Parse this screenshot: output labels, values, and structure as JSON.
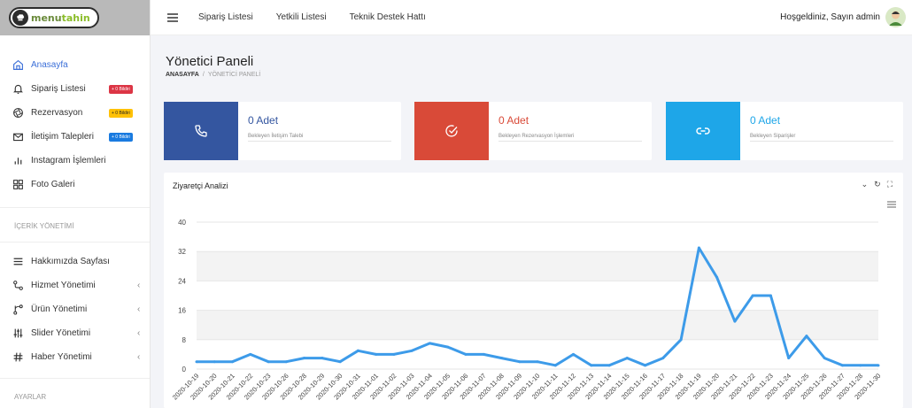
{
  "logo": {
    "text_a": "menu",
    "text_b": "tahin"
  },
  "topbar": {
    "links": [
      "Sipariş Listesi",
      "Yetkili Listesi",
      "Teknik Destek Hattı"
    ],
    "welcome": "Hoşgeldiniz, Sayın admin"
  },
  "sidebar": {
    "items": [
      {
        "label": "Anasayfa",
        "icon": "home-icon",
        "active": true
      },
      {
        "label": "Sipariş Listesi",
        "icon": "bell-icon",
        "badge": "+ 0 Bildiri",
        "badge_color": "#dc3545"
      },
      {
        "label": "Rezervasyon",
        "icon": "aperture-icon",
        "badge": "+ 0 Bildiri",
        "badge_color": "#ffc107"
      },
      {
        "label": "İletişim Talepleri",
        "icon": "mail-icon",
        "badge": "+ 0 Bildiri",
        "badge_color": "#1a7be0"
      },
      {
        "label": "Instagram İşlemleri",
        "icon": "bar-chart-icon"
      },
      {
        "label": "Foto Galeri",
        "icon": "grid-icon"
      }
    ],
    "section_content": "İÇERİK YÖNETİMİ",
    "content_items": [
      {
        "label": "Hakkımızda Sayfası",
        "icon": "menu-lines-icon",
        "chevron": false
      },
      {
        "label": "Hizmet Yönetimi",
        "icon": "route-icon",
        "chevron": true
      },
      {
        "label": "Ürün Yönetimi",
        "icon": "git-merge-icon",
        "chevron": true
      },
      {
        "label": "Slider Yönetimi",
        "icon": "sliders-icon",
        "chevron": true
      },
      {
        "label": "Haber Yönetimi",
        "icon": "hash-icon",
        "chevron": true
      }
    ],
    "section_settings": "AYARLAR"
  },
  "page": {
    "title": "Yönetici Paneli",
    "breadcrumb_root": "ANASAYFA",
    "breadcrumb_sep": "/",
    "breadcrumb_current": "YÖNETİCİ PANELİ"
  },
  "cards": [
    {
      "value": "0 Adet",
      "label": "Bekleyen İletişim Talebi",
      "color": "#3456a0",
      "icon": "phone-icon"
    },
    {
      "value": "0 Adet",
      "label": "Bekleyen Rezervasyon İşlemleri",
      "color": "#d94a38",
      "icon": "check-circle-icon"
    },
    {
      "value": "0 Adet",
      "label": "Bekleyen Siparişler",
      "color": "#1ea6e8",
      "icon": "link-icon"
    }
  ],
  "chart": {
    "title": "Ziyaretçi Analizi",
    "line_color": "#3d9be9"
  },
  "chart_data": {
    "type": "line",
    "x": [
      "2020-10-19",
      "2020-10-20",
      "2020-10-21",
      "2020-10-22",
      "2020-10-23",
      "2020-10-26",
      "2020-10-28",
      "2020-10-29",
      "2020-10-30",
      "2020-10-31",
      "2020-11-01",
      "2020-11-02",
      "2020-11-03",
      "2020-11-04",
      "2020-11-05",
      "2020-11-06",
      "2020-11-07",
      "2020-11-08",
      "2020-11-09",
      "2020-11-10",
      "2020-11-11",
      "2020-11-12",
      "2020-11-13",
      "2020-11-14",
      "2020-11-15",
      "2020-11-16",
      "2020-11-17",
      "2020-11-18",
      "2020-11-19",
      "2020-11-20",
      "2020-11-21",
      "2020-11-22",
      "2020-11-23",
      "2020-11-24",
      "2020-11-25",
      "2020-11-26",
      "2020-11-27",
      "2020-11-28",
      "2020-11-30"
    ],
    "series": [
      {
        "values": [
          2,
          2,
          2,
          4,
          2,
          2,
          3,
          3,
          2,
          5,
          4,
          4,
          5,
          7,
          6,
          4,
          4,
          3,
          2,
          2,
          1,
          4,
          1,
          1,
          3,
          1,
          3,
          8,
          33,
          25,
          13,
          20,
          20,
          3,
          9,
          3,
          1,
          1,
          1
        ]
      }
    ],
    "ylim": [
      0,
      40
    ],
    "yticks": [
      0,
      8,
      16,
      24,
      32,
      40
    ],
    "grid": true,
    "title": "Ziyaretçi Analizi"
  }
}
